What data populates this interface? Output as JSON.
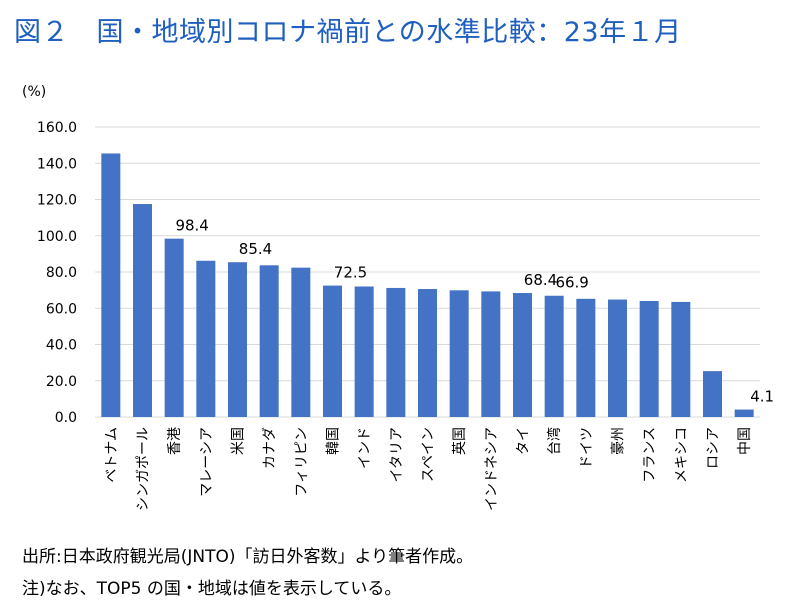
{
  "title": "図２　国・地域別コロナ禍前との水準比較：23年１月",
  "unit_label": "(%)",
  "source_note": "出所:日本政府観光局(JNTO)「訪日外客数」より筆者作成。",
  "remark_note": "注)なお、TOP5 の国・地域は値を表示している。",
  "colors": {
    "bar": "#4472c4",
    "title": "#1f5fbf",
    "grid": "#d9d9d9"
  },
  "chart_data": {
    "type": "bar",
    "title": "図２　国・地域別コロナ禍前との水準比較：23年１月",
    "ylabel": "(%)",
    "ylim": [
      0,
      160
    ],
    "yticks": [
      "0.0",
      "20.0",
      "40.0",
      "60.0",
      "80.0",
      "100.0",
      "120.0",
      "140.0",
      "160.0"
    ],
    "grid": "horizontal",
    "legend": "none",
    "categories": [
      "ベトナム",
      "シンガポール",
      "香港",
      "マレーシア",
      "米国",
      "カナダ",
      "フィリピン",
      "韓国",
      "インド",
      "イタリア",
      "スペイン",
      "英国",
      "インドネシア",
      "タイ",
      "台湾",
      "ドイツ",
      "豪州",
      "フランス",
      "メキシコ",
      "ロシア",
      "中国"
    ],
    "values": [
      145.4,
      117.5,
      98.4,
      86.2,
      85.4,
      83.7,
      82.4,
      72.5,
      72.0,
      71.2,
      70.6,
      69.9,
      69.3,
      68.4,
      66.9,
      65.2,
      64.8,
      64.0,
      63.5,
      25.3,
      4.1
    ],
    "data_labels": [
      {
        "index": 2,
        "text": "98.4"
      },
      {
        "index": 4,
        "text": "85.4"
      },
      {
        "index": 7,
        "text": "72.5"
      },
      {
        "index": 13,
        "text": "68.4"
      },
      {
        "index": 14,
        "text": "66.9"
      },
      {
        "index": 20,
        "text": "4.1"
      }
    ]
  }
}
